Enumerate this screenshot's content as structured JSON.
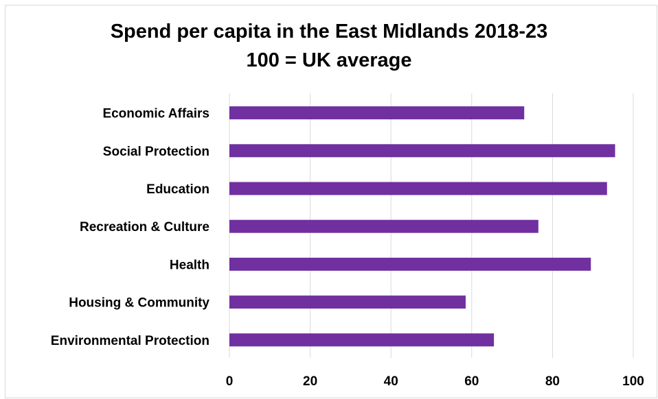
{
  "chart_data": {
    "type": "bar",
    "orientation": "horizontal",
    "title": "Spend per capita in the East Midlands 2018-23",
    "subtitle": "100 = UK average",
    "categories": [
      "Economic Affairs",
      "Social Protection",
      "Education",
      "Recreation & Culture",
      "Health",
      "Housing & Community",
      "Environmental Protection"
    ],
    "values": [
      73,
      95.5,
      93.5,
      76.5,
      89.5,
      58.5,
      65.5
    ],
    "xlim": [
      0,
      100
    ],
    "xticks": [
      "0",
      "20",
      "40",
      "60",
      "80",
      "100"
    ],
    "xlabel": "",
    "ylabel": "",
    "grid": "vertical",
    "legend": "none",
    "bar_color": "#7030a0",
    "grid_color": "#d9d9d9"
  }
}
